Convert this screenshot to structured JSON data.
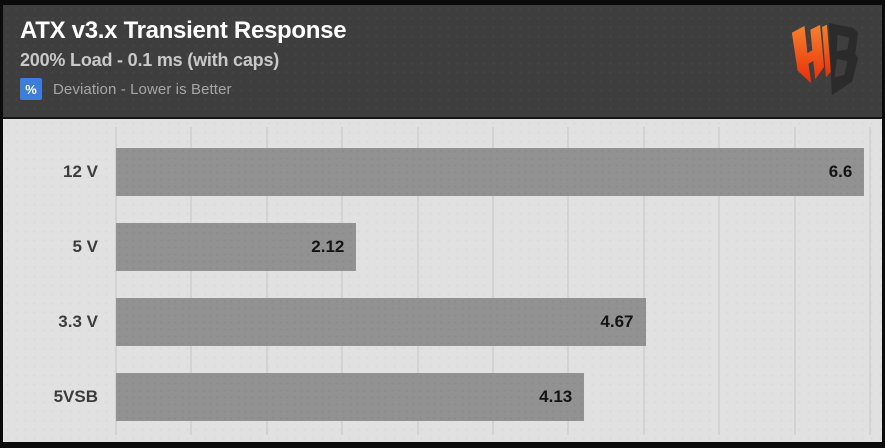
{
  "header": {
    "title": "ATX v3.x Transient Response",
    "subtitle": "200% Load - 0.1 ms (with caps)",
    "unit_badge": "%",
    "legend_text": "Deviation - Lower is Better",
    "badge_color": "#3d7edc",
    "background_color": "#3e3e3e",
    "logo_name": "hardware-busters-logo",
    "logo_colors": {
      "left_top": "#f5832d",
      "left_bottom": "#e92c0a",
      "right": "#2b2b2b"
    }
  },
  "chart_data": {
    "type": "bar",
    "orientation": "horizontal",
    "title": "ATX v3.x Transient Response",
    "subtitle": "200% Load - 0.1 ms (with caps)",
    "legend": "Deviation - Lower is Better",
    "unit": "%",
    "categories": [
      "12 V",
      "5 V",
      "3.3 V",
      "5VSB"
    ],
    "values": [
      6.6,
      2.12,
      4.67,
      4.13
    ],
    "value_labels": [
      "6.6",
      "2.12",
      "4.67",
      "4.13"
    ],
    "xlim": [
      0,
      6.65
    ],
    "gridline_count": 11,
    "grid": true,
    "legend_position": "top-left-header",
    "bar_color": "#929292",
    "plot_bg": "#e1e1e1",
    "gridline_color": "#d3d3d3",
    "value_label_color": "#141414",
    "category_label_color": "#3c3c3c"
  }
}
